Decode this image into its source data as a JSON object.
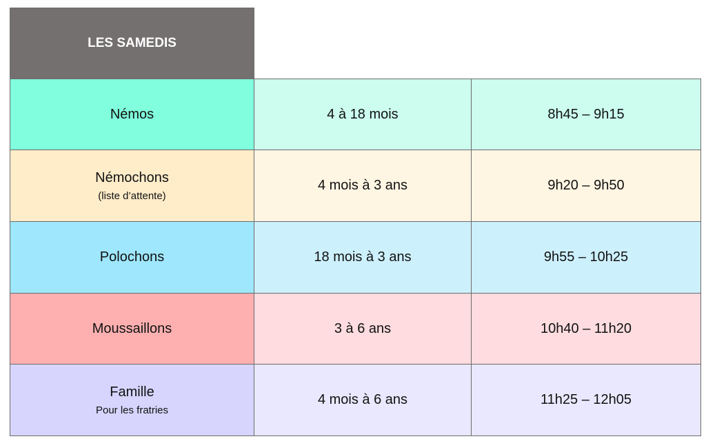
{
  "header": {
    "title": "LES SAMEDIS",
    "color": "#757070"
  },
  "rows": [
    {
      "name": "Némos",
      "note": "",
      "ages": "4 à 18 mois",
      "time": "8h45 – 9h15",
      "color": "#80fedd",
      "light": "#ccfdef"
    },
    {
      "name": "Némochons",
      "note": "(liste d’attente)",
      "ages": "4 mois à 3 ans",
      "time": "9h20 – 9h50",
      "color": "#ffecc9",
      "light": "#fff5e3"
    },
    {
      "name": "Polochons",
      "note": "",
      "ages": "18 mois à 3 ans",
      "time": "9h55 – 10h25",
      "color": "#9fe7fd",
      "light": "#cdf0fd"
    },
    {
      "name": "Moussaillons",
      "note": "",
      "ages": "3 à 6 ans",
      "time": "10h40 – 11h20",
      "color": "#feb0b0",
      "light": "#fedcdf"
    },
    {
      "name": "Famille",
      "note": "Pour les fratries",
      "ages": "4 mois à 6 ans",
      "time": "11h25 – 12h05",
      "color": "#d7d5fd",
      "light": "#e9e8fe"
    }
  ]
}
